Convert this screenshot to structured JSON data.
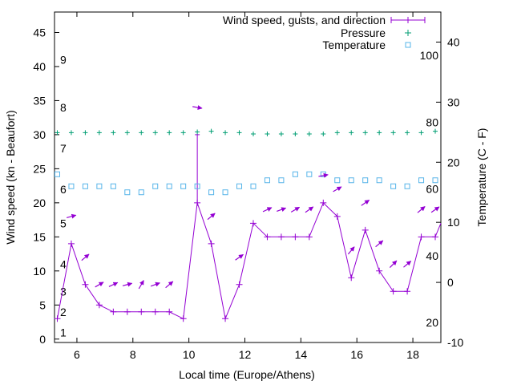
{
  "colors": {
    "wind": "#9400d3",
    "pressure": "#009e73",
    "temperature": "#56b4e9",
    "axis": "#000000"
  },
  "chart_data": {
    "type": "line",
    "title": "",
    "xlabel": "Local time (Europe/Athens)",
    "ylabel": "Wind speed (kn - Beaufort)",
    "y2label": "Temperature (C - F)",
    "xlim": [
      5.2,
      19.0
    ],
    "ylim": [
      -0.5,
      48
    ],
    "y2lim": [
      -10,
      45
    ],
    "x_ticks": [
      6,
      8,
      10,
      12,
      14,
      16,
      18
    ],
    "x_tick_labels": [
      "6",
      "8",
      "10",
      "12",
      "14",
      "16",
      "18"
    ],
    "y_ticks": [
      0,
      5,
      10,
      15,
      20,
      25,
      30,
      35,
      40,
      45
    ],
    "y_tick_labels": [
      "0",
      "5",
      "10",
      "15",
      "20",
      "25",
      "30",
      "35",
      "40",
      "45"
    ],
    "y2_ticks": [
      -10,
      0,
      10,
      20,
      30,
      40
    ],
    "y2_tick_labels": [
      "-10",
      "0",
      "10",
      "20",
      "30",
      "40"
    ],
    "beaufort_labels": [
      {
        "label": "1",
        "y": 1
      },
      {
        "label": "2",
        "y": 4
      },
      {
        "label": "3",
        "y": 7
      },
      {
        "label": "4",
        "y": 11
      },
      {
        "label": "5",
        "y": 17
      },
      {
        "label": "6",
        "y": 22
      },
      {
        "label": "7",
        "y": 28
      },
      {
        "label": "8",
        "y": 34
      },
      {
        "label": "9",
        "y": 41
      }
    ],
    "fahrenheit_labels": [
      {
        "label": "20",
        "t": -6.67
      },
      {
        "label": "40",
        "t": 4.44
      },
      {
        "label": "60",
        "t": 15.56
      },
      {
        "label": "80",
        "t": 26.67
      },
      {
        "label": "100",
        "t": 37.78
      }
    ],
    "legend": [
      {
        "key": "wind",
        "label": "Wind speed, gusts, and direction"
      },
      {
        "key": "pressure",
        "label": "Pressure"
      },
      {
        "key": "temperature",
        "label": "Temperature"
      }
    ],
    "series": [
      {
        "name": "Wind speed",
        "x": [
          5.3,
          5.8,
          6.3,
          6.8,
          7.3,
          7.8,
          8.3,
          8.8,
          9.3,
          9.8,
          10.3,
          10.8,
          11.3,
          11.8,
          12.3,
          12.8,
          13.3,
          13.8,
          14.3,
          14.8,
          15.3,
          15.8,
          16.3,
          16.8,
          17.3,
          17.8,
          18.3,
          18.8,
          19.0
        ],
        "values": [
          3,
          14,
          8,
          5,
          4,
          4,
          4,
          4,
          4,
          3,
          20,
          14,
          3,
          8,
          17,
          15,
          15,
          15,
          15,
          20,
          18,
          9,
          16,
          10,
          7,
          7,
          15,
          15,
          17
        ]
      },
      {
        "name": "Gust",
        "x": [
          10.3
        ],
        "values": [
          30
        ]
      },
      {
        "name": "Pressure",
        "x": [
          5.3,
          5.8,
          6.3,
          6.8,
          7.3,
          7.8,
          8.3,
          8.8,
          9.3,
          9.8,
          10.3,
          10.8,
          11.3,
          11.8,
          12.3,
          12.8,
          13.3,
          13.8,
          14.3,
          14.8,
          15.3,
          15.8,
          16.3,
          16.8,
          17.3,
          17.8,
          18.3,
          18.8
        ],
        "values": [
          30.3,
          30.3,
          30.3,
          30.3,
          30.3,
          30.3,
          30.3,
          30.3,
          30.3,
          30.3,
          30.4,
          30.5,
          30.3,
          30.3,
          30.1,
          30.1,
          30.1,
          30.1,
          30.1,
          30.1,
          30.3,
          30.3,
          30.3,
          30.3,
          30.3,
          30.3,
          30.3,
          30.5
        ]
      },
      {
        "name": "Temperature",
        "x": [
          5.3,
          5.8,
          6.3,
          6.8,
          7.3,
          7.8,
          8.3,
          8.8,
          9.3,
          9.8,
          10.3,
          10.8,
          11.3,
          11.8,
          12.3,
          12.8,
          13.3,
          13.8,
          14.3,
          14.8,
          15.3,
          15.8,
          16.3,
          16.8,
          17.3,
          17.8,
          18.3,
          18.8
        ],
        "values": [
          18,
          16,
          16,
          16,
          16,
          15,
          15,
          16,
          16,
          16,
          16,
          15,
          15,
          16,
          16,
          17,
          17,
          18,
          18,
          18,
          17,
          17,
          17,
          17,
          16,
          16,
          17,
          17
        ]
      }
    ],
    "wind_directions": [
      {
        "x": 5.8,
        "y": 18,
        "angle": -15
      },
      {
        "x": 6.3,
        "y": 12,
        "angle": -40
      },
      {
        "x": 6.8,
        "y": 8,
        "angle": -30
      },
      {
        "x": 7.3,
        "y": 8,
        "angle": -25
      },
      {
        "x": 7.8,
        "y": 8,
        "angle": -15
      },
      {
        "x": 8.3,
        "y": 8,
        "angle": -60
      },
      {
        "x": 8.8,
        "y": 8,
        "angle": -20
      },
      {
        "x": 9.3,
        "y": 8,
        "angle": -40
      },
      {
        "x": 10.3,
        "y": 34,
        "angle": 10
      },
      {
        "x": 10.8,
        "y": 18,
        "angle": -40
      },
      {
        "x": 11.8,
        "y": 12,
        "angle": -35
      },
      {
        "x": 12.8,
        "y": 19,
        "angle": -25
      },
      {
        "x": 13.3,
        "y": 19,
        "angle": -20
      },
      {
        "x": 13.8,
        "y": 19,
        "angle": -30
      },
      {
        "x": 14.3,
        "y": 19,
        "angle": -35
      },
      {
        "x": 14.8,
        "y": 24,
        "angle": -10
      },
      {
        "x": 15.3,
        "y": 22,
        "angle": -30
      },
      {
        "x": 15.8,
        "y": 13,
        "angle": -50
      },
      {
        "x": 16.3,
        "y": 20,
        "angle": -35
      },
      {
        "x": 16.8,
        "y": 14,
        "angle": -40
      },
      {
        "x": 17.3,
        "y": 11,
        "angle": -45
      },
      {
        "x": 17.8,
        "y": 11,
        "angle": -40
      },
      {
        "x": 18.3,
        "y": 19,
        "angle": -40
      },
      {
        "x": 18.8,
        "y": 19,
        "angle": -35
      }
    ]
  }
}
